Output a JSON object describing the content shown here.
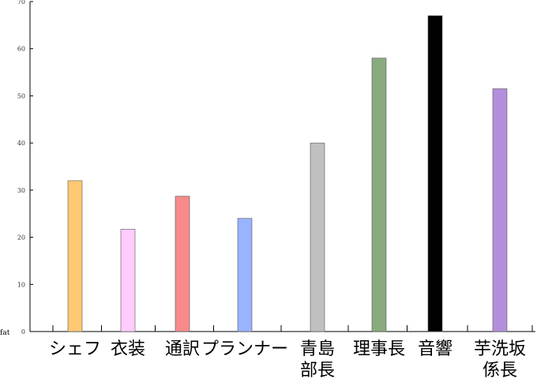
{
  "chart_data": {
    "type": "bar",
    "title": "",
    "xlabel": "",
    "ylabel": "fat",
    "ylim": [
      0,
      70
    ],
    "yticks": [
      "0",
      "10",
      "20",
      "30",
      "40",
      "50",
      "60",
      "70"
    ],
    "categories": [
      [
        "シェフ"
      ],
      [
        "衣装"
      ],
      [
        "通訳"
      ],
      [
        "プランナー"
      ],
      [
        "青島",
        "部長"
      ],
      [
        "理事長"
      ],
      [
        "音響"
      ],
      [
        "芋洗坂",
        "係長"
      ]
    ],
    "values": [
      32,
      21.7,
      28.7,
      24,
      40,
      58,
      67,
      51.5
    ],
    "colors": [
      "#ffc873",
      "#ffccff",
      "#f78a8a",
      "#99b3ff",
      "#c0c0c0",
      "#88ab7d",
      "#000000",
      "#b38fdb"
    ],
    "grid": false,
    "legend": "none"
  }
}
